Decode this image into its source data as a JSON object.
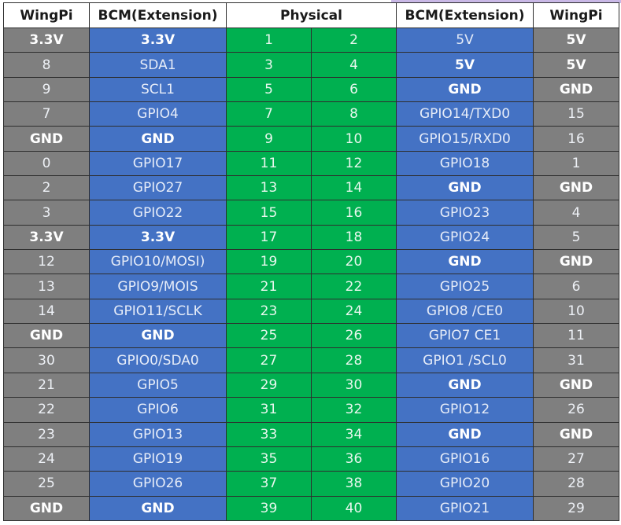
{
  "headers": [
    "WingPi",
    "BCM(Extension)",
    "Physical",
    "BCM(Extension)",
    "WingPi"
  ],
  "colors": {
    "wingpi": "#7f7f7f",
    "bcm": "#4472c4",
    "physical": "#00b050",
    "border": "#2e2e2e"
  },
  "rows": [
    {
      "lw": "3.3V",
      "lb": "3.3V",
      "pl": "1",
      "pr": "2",
      "rb": "5V",
      "rw": "5V",
      "b": [
        1,
        1,
        0,
        0,
        0,
        1
      ]
    },
    {
      "lw": "8",
      "lb": "SDA1",
      "pl": "3",
      "pr": "4",
      "rb": "5V",
      "rw": "5V",
      "b": [
        0,
        0,
        0,
        0,
        1,
        1
      ]
    },
    {
      "lw": "9",
      "lb": "SCL1",
      "pl": "5",
      "pr": "6",
      "rb": "GND",
      "rw": "GND",
      "b": [
        0,
        0,
        0,
        0,
        1,
        1
      ]
    },
    {
      "lw": "7",
      "lb": "GPIO4",
      "pl": "7",
      "pr": "8",
      "rb": "GPIO14/TXD0",
      "rw": "15",
      "b": [
        0,
        0,
        0,
        0,
        0,
        0
      ]
    },
    {
      "lw": "GND",
      "lb": "GND",
      "pl": "9",
      "pr": "10",
      "rb": "GPIO15/RXD0",
      "rw": "16",
      "b": [
        1,
        1,
        0,
        0,
        0,
        0
      ]
    },
    {
      "lw": "0",
      "lb": "GPIO17",
      "pl": "11",
      "pr": "12",
      "rb": "GPIO18",
      "rw": "1",
      "b": [
        0,
        0,
        0,
        0,
        0,
        0
      ]
    },
    {
      "lw": "2",
      "lb": "GPIO27",
      "pl": "13",
      "pr": "14",
      "rb": "GND",
      "rw": "GND",
      "b": [
        0,
        0,
        0,
        0,
        1,
        1
      ]
    },
    {
      "lw": "3",
      "lb": "GPIO22",
      "pl": "15",
      "pr": "16",
      "rb": "GPIO23",
      "rw": "4",
      "b": [
        0,
        0,
        0,
        0,
        0,
        0
      ]
    },
    {
      "lw": "3.3V",
      "lb": "3.3V",
      "pl": "17",
      "pr": "18",
      "rb": "GPIO24",
      "rw": "5",
      "b": [
        1,
        1,
        0,
        0,
        0,
        0
      ]
    },
    {
      "lw": "12",
      "lb": "GPIO10/MOSI)",
      "pl": "19",
      "pr": "20",
      "rb": "GND",
      "rw": "GND",
      "b": [
        0,
        0,
        0,
        0,
        1,
        1
      ]
    },
    {
      "lw": "13",
      "lb": "GPIO9/MOIS",
      "pl": "21",
      "pr": "22",
      "rb": "GPIO25",
      "rw": "6",
      "b": [
        0,
        0,
        0,
        0,
        0,
        0
      ]
    },
    {
      "lw": "14",
      "lb": "GPIO11/SCLK",
      "pl": "23",
      "pr": "24",
      "rb": "GPIO8 /CE0",
      "rw": "10",
      "b": [
        0,
        0,
        0,
        0,
        0,
        0
      ]
    },
    {
      "lw": "GND",
      "lb": "GND",
      "pl": "25",
      "pr": "26",
      "rb": "GPIO7 CE1",
      "rw": "11",
      "b": [
        1,
        1,
        0,
        0,
        0,
        0
      ]
    },
    {
      "lw": "30",
      "lb": "GPIO0/SDA0",
      "pl": "27",
      "pr": "28",
      "rb": "GPIO1 /SCL0",
      "rw": "31",
      "b": [
        0,
        0,
        0,
        0,
        0,
        0
      ]
    },
    {
      "lw": "21",
      "lb": "GPIO5",
      "pl": "29",
      "pr": "30",
      "rb": "GND",
      "rw": "GND",
      "b": [
        0,
        0,
        0,
        0,
        1,
        1
      ]
    },
    {
      "lw": "22",
      "lb": "GPIO6",
      "pl": "31",
      "pr": "32",
      "rb": "GPIO12",
      "rw": "26",
      "b": [
        0,
        0,
        0,
        0,
        0,
        0
      ]
    },
    {
      "lw": "23",
      "lb": "GPIO13",
      "pl": "33",
      "pr": "34",
      "rb": "GND",
      "rw": "GND",
      "b": [
        0,
        0,
        0,
        0,
        1,
        1
      ]
    },
    {
      "lw": "24",
      "lb": "GPIO19",
      "pl": "35",
      "pr": "36",
      "rb": "GPIO16",
      "rw": "27",
      "b": [
        0,
        0,
        0,
        0,
        0,
        0
      ]
    },
    {
      "lw": "25",
      "lb": "GPIO26",
      "pl": "37",
      "pr": "38",
      "rb": "GPIO20",
      "rw": "28",
      "b": [
        0,
        0,
        0,
        0,
        0,
        0
      ]
    },
    {
      "lw": "GND",
      "lb": "GND",
      "pl": "39",
      "pr": "40",
      "rb": "GPIO21",
      "rw": "29",
      "b": [
        1,
        1,
        0,
        0,
        0,
        0
      ]
    }
  ]
}
